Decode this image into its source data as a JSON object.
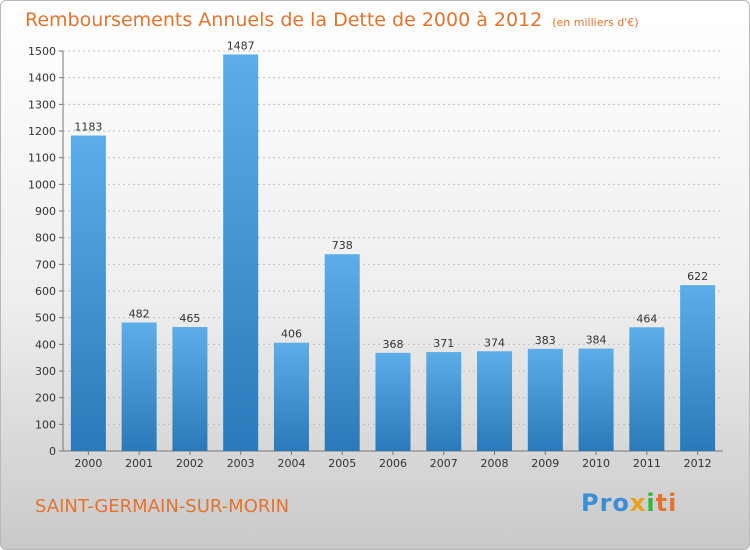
{
  "title": "Remboursements Annuels de la Dette de 2000 à 2012",
  "unit": "(en milliers d'€)",
  "commune": "SAINT-GERMAIN-SUR-MORIN",
  "logo": {
    "p1": "Pro",
    "p2": "x",
    "p3": "i",
    "p4": "ti"
  },
  "colors": {
    "bar_light": "#5dade8",
    "bar_dark": "#2a7ab9",
    "title": "#e2742f",
    "grid": "#bfbfbf"
  },
  "chart_data": {
    "type": "bar",
    "title": "Remboursements Annuels de la Dette de 2000 à 2012",
    "categories": [
      "2000",
      "2001",
      "2002",
      "2003",
      "2004",
      "2005",
      "2006",
      "2007",
      "2008",
      "2009",
      "2010",
      "2011",
      "2012"
    ],
    "values": [
      1183,
      482,
      465,
      1487,
      406,
      738,
      368,
      371,
      374,
      383,
      384,
      464,
      622
    ],
    "ylim": [
      0,
      1500
    ],
    "yticks": [
      0,
      100,
      200,
      300,
      400,
      500,
      600,
      700,
      800,
      900,
      1000,
      1100,
      1200,
      1300,
      1400,
      1500
    ],
    "grid": true
  }
}
